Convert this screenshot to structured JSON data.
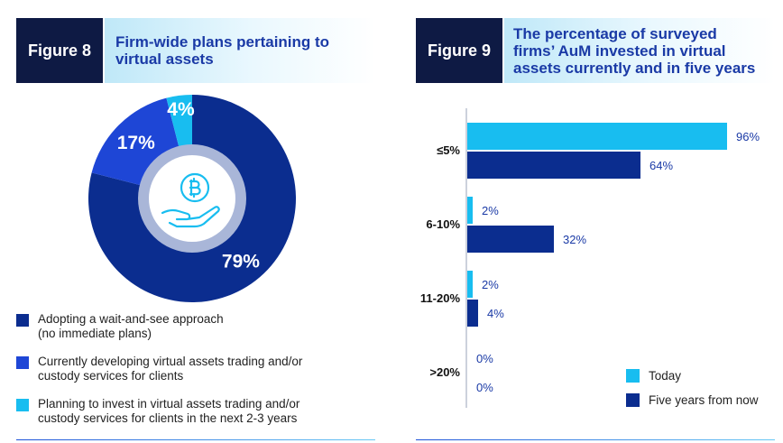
{
  "figure8": {
    "label": "Figure 8",
    "title": "Firm-wide plans pertaining to\nvirtual assets"
  },
  "figure9": {
    "label": "Figure 9",
    "title": "The percentage of surveyed\nfirms’ AuM invested in virtual\nassets currently and in five years"
  },
  "colors": {
    "navy": "#0b2d8f",
    "blue": "#1e46d6",
    "cyan": "#18bdf0",
    "dark_label_bg": "#0e1a44",
    "ring": "#a9b6d8",
    "center": "#ffffff"
  },
  "chart_data": [
    {
      "type": "pie",
      "title": "Firm-wide plans pertaining to virtual assets",
      "slices": [
        {
          "label": "Adopting a wait-and-see approach\n(no immediate plans)",
          "value": 79,
          "display": "79%",
          "color": "#0b2d8f"
        },
        {
          "label": "Currently developing virtual assets trading and/or\ncustody services for clients",
          "value": 17,
          "display": "17%",
          "color": "#1e46d6"
        },
        {
          "label": "Planning to invest in virtual assets trading and/or\ncustody services for clients in the next 2-3 years",
          "value": 4,
          "display": "4%",
          "color": "#18bdf0"
        }
      ],
      "center_icon": "bitcoin-hand-icon"
    },
    {
      "type": "bar",
      "orientation": "horizontal",
      "title": "The percentage of surveyed firms’ AuM invested in virtual assets currently and in five years",
      "categories": [
        "≤5%",
        "6-10%",
        "11-20%",
        ">20%"
      ],
      "series": [
        {
          "name": "Today",
          "color": "#18bdf0",
          "values": [
            96,
            2,
            2,
            0
          ],
          "labels": [
            "96%",
            "2%",
            "2%",
            "0%"
          ]
        },
        {
          "name": "Five years from now",
          "color": "#0b2d8f",
          "values": [
            64,
            32,
            4,
            0
          ],
          "labels": [
            "64%",
            "32%",
            "4%",
            "0%"
          ]
        }
      ],
      "xlim": [
        0,
        100
      ]
    }
  ]
}
